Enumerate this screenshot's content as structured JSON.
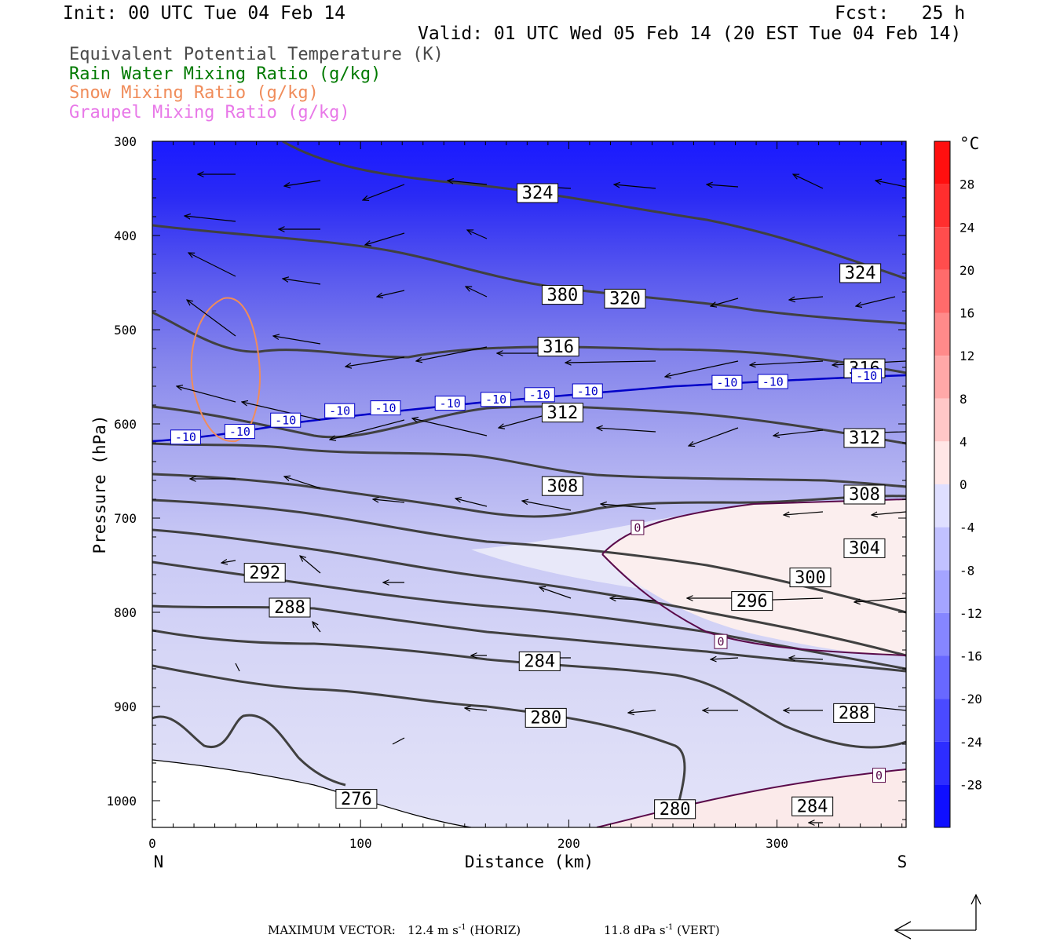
{
  "header": {
    "init": "Init: 00 UTC Tue 04 Feb 14",
    "fcst": "Fcst:   25 h",
    "valid": "Valid: 01 UTC Wed 05 Feb 14 (20 EST Tue 04 Feb 14)"
  },
  "legend": [
    {
      "label": "Equivalent Potential Temperature (K)",
      "color": "#4a4a4a"
    },
    {
      "label": "Rain Water Mixing Ratio (g/kg)",
      "color": "#007a00"
    },
    {
      "label": "Snow Mixing Ratio (g/kg)",
      "color": "#f08c5a"
    },
    {
      "label": "Graupel Mixing Ratio (g/kg)",
      "color": "#e878e8"
    }
  ],
  "chart_data": {
    "type": "cross-section contour",
    "xlabel": "Distance (km)",
    "ylabel": "Pressure (hPa)",
    "xlim": [
      0,
      362
    ],
    "ylim": [
      1030,
      300
    ],
    "x_ticks": [
      "0",
      "100",
      "200",
      "300"
    ],
    "x_tick_values": [
      0,
      100,
      200,
      300
    ],
    "y_ticks": [
      "300",
      "400",
      "500",
      "600",
      "700",
      "800",
      "900",
      "1000"
    ],
    "y_tick_values": [
      300,
      400,
      500,
      600,
      700,
      800,
      900,
      1000
    ],
    "x_end_labels": {
      "left": "N",
      "right": "S"
    },
    "colorbar": {
      "unit": "°C",
      "labels": [
        "28",
        "24",
        "20",
        "16",
        "12",
        "8",
        "4",
        "0",
        "-4",
        "-8",
        "-12",
        "-16",
        "-20",
        "-24",
        "-28"
      ],
      "values": [
        28,
        24,
        20,
        16,
        12,
        8,
        4,
        0,
        -4,
        -8,
        -12,
        -16,
        -20,
        -24,
        -28
      ],
      "range": [
        -32,
        32
      ]
    },
    "theta_e_labels": [
      {
        "text": "324",
        "x": 185,
        "p": 355
      },
      {
        "text": "324",
        "x": 340,
        "p": 440
      },
      {
        "text": "380",
        "x": 197,
        "p": 463
      },
      {
        "text": "320",
        "x": 227,
        "p": 467
      },
      {
        "text": "316",
        "x": 195,
        "p": 518
      },
      {
        "text": "316",
        "x": 342,
        "p": 541
      },
      {
        "text": "312",
        "x": 197,
        "p": 588
      },
      {
        "text": "312",
        "x": 342,
        "p": 615
      },
      {
        "text": "308",
        "x": 197,
        "p": 666
      },
      {
        "text": "308",
        "x": 342,
        "p": 675
      },
      {
        "text": "304",
        "x": 342,
        "p": 732
      },
      {
        "text": "300",
        "x": 316,
        "p": 763
      },
      {
        "text": "296",
        "x": 288,
        "p": 788
      },
      {
        "text": "292",
        "x": 54,
        "p": 758
      },
      {
        "text": "288",
        "x": 66,
        "p": 795
      },
      {
        "text": "288",
        "x": 337,
        "p": 907
      },
      {
        "text": "284",
        "x": 186,
        "p": 852
      },
      {
        "text": "284",
        "x": 317,
        "p": 1006
      },
      {
        "text": "280",
        "x": 189,
        "p": 912
      },
      {
        "text": "280",
        "x": 251,
        "p": 1009
      },
      {
        "text": "276",
        "x": 98,
        "p": 998
      }
    ],
    "isotherm_labels": [
      {
        "text": "-10",
        "x": 16,
        "p": 614
      },
      {
        "text": "-10",
        "x": 42,
        "p": 608
      },
      {
        "text": "-10",
        "x": 64,
        "p": 596
      },
      {
        "text": "-10",
        "x": 90,
        "p": 586
      },
      {
        "text": "-10",
        "x": 112,
        "p": 583
      },
      {
        "text": "-10",
        "x": 143,
        "p": 578
      },
      {
        "text": "-10",
        "x": 165,
        "p": 574
      },
      {
        "text": "-10",
        "x": 186,
        "p": 569
      },
      {
        "text": "-10",
        "x": 209,
        "p": 565
      },
      {
        "text": "-10",
        "x": 276,
        "p": 556
      },
      {
        "text": "-10",
        "x": 298,
        "p": 555
      },
      {
        "text": "-10",
        "x": 343,
        "p": 549
      }
    ],
    "zero_labels": [
      {
        "text": "0",
        "x": 233,
        "p": 710
      },
      {
        "text": "0",
        "x": 273,
        "p": 831
      },
      {
        "text": "0",
        "x": 349,
        "p": 973
      }
    ]
  },
  "footer": {
    "max_vector_label": "MAXIMUM VECTOR:",
    "horiz_value": "12.4 m s",
    "horiz_exp": "-1",
    "horiz_suffix": " (HORIZ)",
    "vert_value": "11.8 dPa s",
    "vert_exp": "-1",
    "vert_suffix": " (VERT)"
  }
}
